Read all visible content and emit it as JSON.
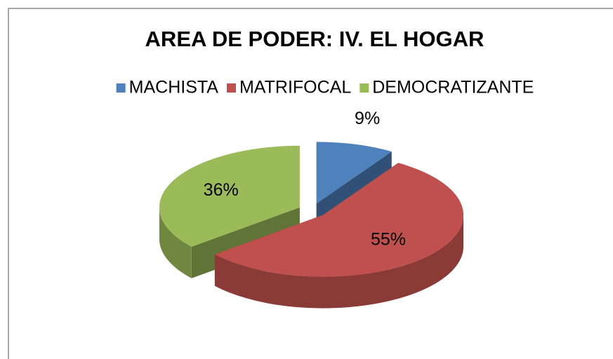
{
  "chart_data": {
    "type": "pie",
    "title": "AREA DE PODER: IV. EL HOGAR",
    "categories": [
      "MACHISTA",
      "MATRIFOCAL",
      "DEMOCRATIZANTE"
    ],
    "values": [
      9,
      55,
      36
    ],
    "value_labels": [
      "9%",
      "55%",
      "36%"
    ],
    "colors": [
      "#4f81bd",
      "#c0504d",
      "#9bbb59"
    ],
    "legend": "top"
  }
}
